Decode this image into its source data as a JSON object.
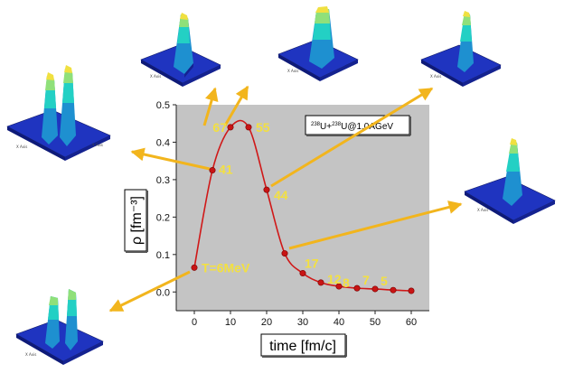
{
  "chart_data": {
    "type": "line",
    "title": "",
    "xlabel": "time [fm/c]",
    "ylabel": "ρ [fm⁻³]",
    "xlim": [
      -5,
      65
    ],
    "ylim": [
      -0.05,
      0.5
    ],
    "xticks": [
      "0",
      "10",
      "20",
      "30",
      "40",
      "50",
      "60"
    ],
    "yticks": [
      "0.0",
      "0.1",
      "0.2",
      "0.3",
      "0.4",
      "0.5"
    ],
    "grid": false,
    "background": "#c4c4c4",
    "curve_color": "#d01818",
    "annotation_color": "#f3e040",
    "arrow_color": "#f2b51d",
    "legend": {
      "mass_a": "238",
      "elem_a": "U+",
      "mass_b": "238",
      "elem_b": "U@1.0AGeV",
      "placement": "top-right"
    },
    "series": [
      {
        "x": [
          0,
          5,
          10,
          15,
          20,
          25,
          30,
          35,
          40,
          45,
          50,
          55,
          60
        ],
        "y": [
          0.065,
          0.325,
          0.44,
          0.44,
          0.273,
          0.103,
          0.05,
          0.025,
          0.015,
          0.01,
          0.008,
          0.005,
          0.003
        ]
      }
    ],
    "point_labels": [
      {
        "index": 0,
        "text": "T=6MeV"
      },
      {
        "index": 1,
        "text": "41"
      },
      {
        "index": 2,
        "text": "67"
      },
      {
        "index": 3,
        "text": "55"
      },
      {
        "index": 4,
        "text": "44"
      },
      {
        "index": 6,
        "text": "17"
      },
      {
        "index": 7,
        "text": "12"
      },
      {
        "index": 8,
        "text": "8"
      },
      {
        "index": 9,
        "text": "7"
      },
      {
        "index": 10,
        "text": "5"
      }
    ]
  },
  "inset_plots": {
    "axis_label_x": "X Axis",
    "axis_label_y": "Y Axis",
    "surface_colors": [
      "#1c2fb8",
      "#1e90d0",
      "#23d0c4",
      "#8fe07a",
      "#f0e040"
    ],
    "count": 7
  }
}
